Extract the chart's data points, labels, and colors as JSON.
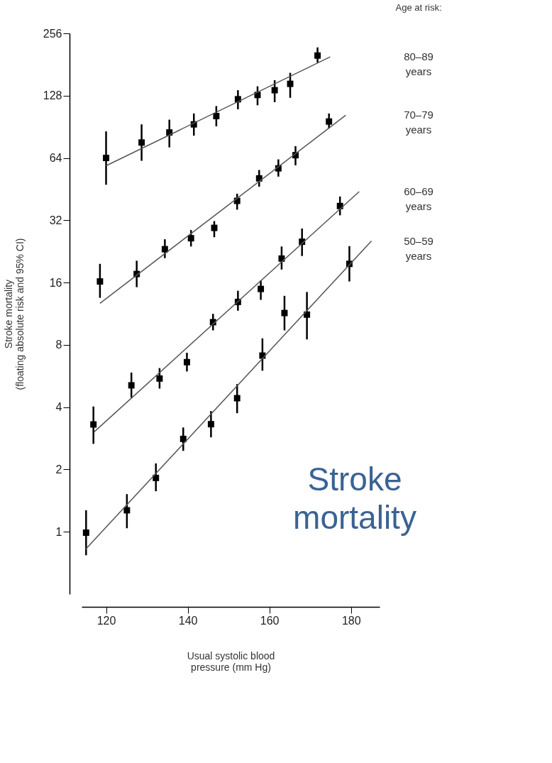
{
  "chart_data": {
    "type": "scatter",
    "xlabel": "Usual systolic blood\npressure (mm Hg)",
    "ylabel": "Stroke mortality\n(floating absolute risk and 95% CI)",
    "legend_title": "Age at risk:",
    "annotations": [
      "Stroke mortality"
    ],
    "log": "y",
    "grid": false,
    "marker": "square",
    "xlim": [
      114,
      187
    ],
    "xticks": [
      120,
      140,
      160,
      180
    ],
    "ylim": [
      0.5,
      256
    ],
    "yticks": [
      1,
      2,
      4,
      8,
      16,
      32,
      64,
      128,
      256
    ],
    "series": [
      {
        "color": "#000000",
        "x": [
          120,
          128.7,
          135.5,
          141.5,
          147,
          152.3,
          157.1,
          161.3,
          165.1,
          171.8
        ],
        "values": [
          64,
          76,
          85,
          93,
          102,
          123,
          129,
          136,
          146,
          200
        ],
        "errors": [
          [
            47.5,
            86
          ],
          [
            62,
            93
          ],
          [
            72,
            98
          ],
          [
            82,
            105
          ],
          [
            91,
            114
          ],
          [
            110,
            136
          ],
          [
            115,
            142
          ],
          [
            119,
            152
          ],
          [
            125,
            165
          ],
          [
            185,
            219
          ]
        ]
      },
      {
        "type": "line",
        "name": "80–89 years",
        "color": "#555555",
        "line_style": "solid",
        "marker": "none",
        "x": [
          120,
          174.9
        ],
        "values": [
          58.7,
          197
        ]
      },
      {
        "color": "#000000",
        "x": [
          118.5,
          127.5,
          134.4,
          140.8,
          146.5,
          152.1,
          157.5,
          162.2,
          166.4,
          174.6
        ],
        "values": [
          16.2,
          17.6,
          23.2,
          26.2,
          29.4,
          39.7,
          51,
          57,
          66,
          96
        ],
        "errors": [
          [
            13.5,
            19.7
          ],
          [
            15.2,
            20.4
          ],
          [
            21,
            25.9
          ],
          [
            23.9,
            28.7
          ],
          [
            26.5,
            31.7
          ],
          [
            36,
            43
          ],
          [
            46.5,
            56
          ],
          [
            52,
            63
          ],
          [
            59,
            73
          ],
          [
            89,
            105
          ]
        ]
      },
      {
        "type": "line",
        "name": "70–79 years",
        "color": "#555555",
        "line_style": "solid",
        "marker": "none",
        "x": [
          118.5,
          178.7
        ],
        "values": [
          12.7,
          103
        ]
      },
      {
        "color": "#000000",
        "x": [
          116.9,
          126.2,
          133.1,
          139.8,
          146.2,
          152.3,
          157.9,
          163,
          168,
          177.3
        ],
        "values": [
          3.3,
          5.1,
          5.5,
          6.6,
          10.3,
          12.9,
          14.9,
          20.9,
          25.2,
          37.5
        ],
        "errors": [
          [
            2.66,
            4.03
          ],
          [
            4.44,
            5.88
          ],
          [
            4.92,
            6.18
          ],
          [
            5.95,
            7.33
          ],
          [
            9.4,
            11.3
          ],
          [
            11.7,
            14.6
          ],
          [
            13.2,
            16.4
          ],
          [
            18.5,
            23.9
          ],
          [
            21.5,
            29.2
          ],
          [
            33.8,
            41.7
          ]
        ]
      },
      {
        "type": "line",
        "name": "60–69 years",
        "color": "#555555",
        "line_style": "solid",
        "marker": "none",
        "x": [
          117.1,
          182
        ],
        "values": [
          3.04,
          44
        ]
      },
      {
        "color": "#000000",
        "x": [
          115.1,
          125.1,
          132.2,
          138.9,
          145.7,
          152.1,
          158.3,
          163.7,
          169.2,
          179.6
        ],
        "values": [
          0.99,
          1.27,
          1.82,
          2.81,
          3.31,
          4.42,
          7.1,
          11.4,
          11.2,
          19.7
        ],
        "errors": [
          [
            0.77,
            1.27
          ],
          [
            1.04,
            1.52
          ],
          [
            1.57,
            2.14
          ],
          [
            2.46,
            3.19
          ],
          [
            2.86,
            3.83
          ],
          [
            3.74,
            5.17
          ],
          [
            6,
            8.6
          ],
          [
            9.4,
            13.8
          ],
          [
            8.5,
            14.4
          ],
          [
            16.2,
            24
          ]
        ]
      },
      {
        "type": "line",
        "name": "50–59 years",
        "color": "#555555",
        "line_style": "solid",
        "marker": "none",
        "x": [
          115,
          185
        ],
        "values": [
          0.824,
          25.4
        ]
      }
    ]
  }
}
